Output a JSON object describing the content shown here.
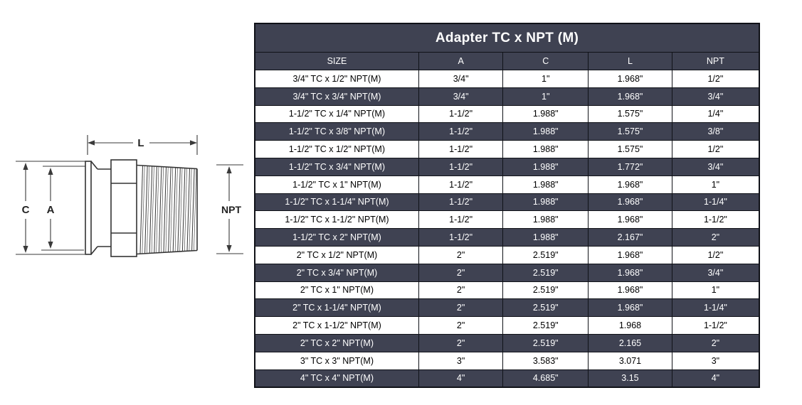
{
  "diagram": {
    "description": "Side-view technical drawing of a tri-clamp to male NPT adapter with dimension callouts",
    "labels": {
      "length": "L",
      "clamp_od": "C",
      "bore": "A",
      "thread": "NPT"
    }
  },
  "table": {
    "title": "Adapter TC x NPT (M)",
    "columns": [
      "SIZE",
      "A",
      "C",
      "L",
      "NPT"
    ],
    "rows": [
      [
        "3/4\" TC x 1/2\" NPT(M)",
        "3/4\"",
        "1\"",
        "1.968\"",
        "1/2\""
      ],
      [
        "3/4\" TC x 3/4\" NPT(M)",
        "3/4\"",
        "1\"",
        "1.968\"",
        "3/4\""
      ],
      [
        "1-1/2\" TC x 1/4\" NPT(M)",
        "1-1/2\"",
        "1.988\"",
        "1.575\"",
        "1/4\""
      ],
      [
        "1-1/2\" TC x 3/8\" NPT(M)",
        "1-1/2\"",
        "1.988\"",
        "1.575\"",
        "3/8\""
      ],
      [
        "1-1/2\" TC x 1/2\" NPT(M)",
        "1-1/2\"",
        "1.988\"",
        "1.575\"",
        "1/2\""
      ],
      [
        "1-1/2\" TC x 3/4\" NPT(M)",
        "1-1/2\"",
        "1.988\"",
        "1.772\"",
        "3/4\""
      ],
      [
        "1-1/2\" TC x 1\" NPT(M)",
        "1-1/2\"",
        "1.988\"",
        "1.968\"",
        "1\""
      ],
      [
        "1-1/2\" TC x 1-1/4\" NPT(M)",
        "1-1/2\"",
        "1.988\"",
        "1.968\"",
        "1-1/4\""
      ],
      [
        "1-1/2\" TC x 1-1/2\" NPT(M)",
        "1-1/2\"",
        "1.988\"",
        "1.968\"",
        "1-1/2\""
      ],
      [
        "1-1/2\" TC x 2\" NPT(M)",
        "1-1/2\"",
        "1.988\"",
        "2.167\"",
        "2\""
      ],
      [
        "2\" TC x 1/2\" NPT(M)",
        "2\"",
        "2.519\"",
        "1.968\"",
        "1/2\""
      ],
      [
        "2\" TC x 3/4\" NPT(M)",
        "2\"",
        "2.519\"",
        "1.968\"",
        "3/4\""
      ],
      [
        "2\" TC x 1\" NPT(M)",
        "2\"",
        "2.519\"",
        "1.968\"",
        "1\""
      ],
      [
        "2\" TC x 1-1/4\" NPT(M)",
        "2\"",
        "2.519\"",
        "1.968\"",
        "1-1/4\""
      ],
      [
        "2\" TC x 1-1/2\" NPT(M)",
        "2\"",
        "2.519\"",
        "1.968",
        "1-1/2\""
      ],
      [
        "2\" TC x 2\" NPT(M)",
        "2\"",
        "2.519\"",
        "2.165",
        "2\""
      ],
      [
        "3\" TC x 3\" NPT(M)",
        "3\"",
        "3.583\"",
        "3.071",
        "3\""
      ],
      [
        "4\" TC x 4\" NPT(M)",
        "4\"",
        "4.685\"",
        "3.15",
        "4\""
      ]
    ],
    "colors": {
      "dark_row_bg": "#3f4252",
      "light_row_bg": "#ffffff",
      "border": "#101218",
      "dark_row_text": "#ffffff",
      "light_row_text": "#000000"
    }
  }
}
